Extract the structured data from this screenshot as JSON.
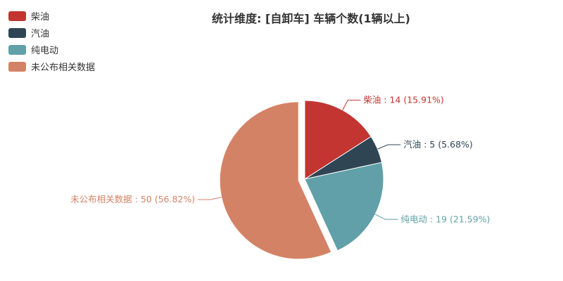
{
  "chart_data": {
    "type": "pie",
    "title": "统计维度: [自卸车] 车辆个数(1辆以上)",
    "legend_position": "top-left",
    "label_separator": " : ",
    "slices": [
      {
        "name": "柴油",
        "value": 14,
        "percent": "15.91%",
        "color": "#c23531"
      },
      {
        "name": "汽油",
        "value": 5,
        "percent": "5.68%",
        "color": "#2f4554"
      },
      {
        "name": "纯电动",
        "value": 19,
        "percent": "21.59%",
        "color": "#61a0a8"
      },
      {
        "name": "未公布相关数据",
        "value": 50,
        "percent": "56.82%",
        "color": "#d48265"
      }
    ],
    "highlighted_slice": "未公布相关数据"
  }
}
